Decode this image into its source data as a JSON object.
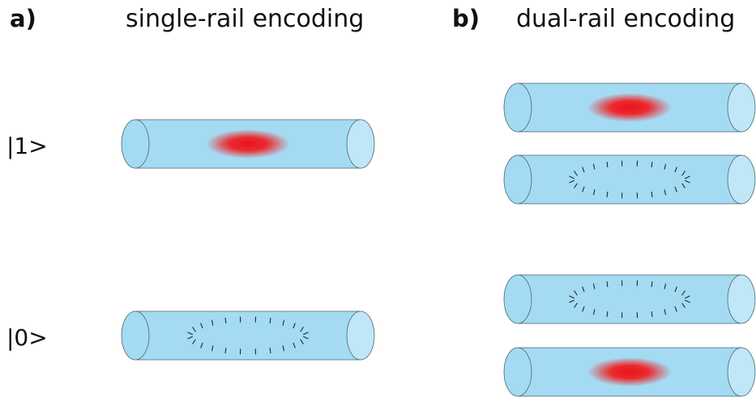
{
  "panels": [
    {
      "label": "a)",
      "title": "single-rail encoding"
    },
    {
      "label": "b)",
      "title": "dual-rail encoding"
    }
  ],
  "states": [
    "|1>",
    "|0>"
  ]
}
